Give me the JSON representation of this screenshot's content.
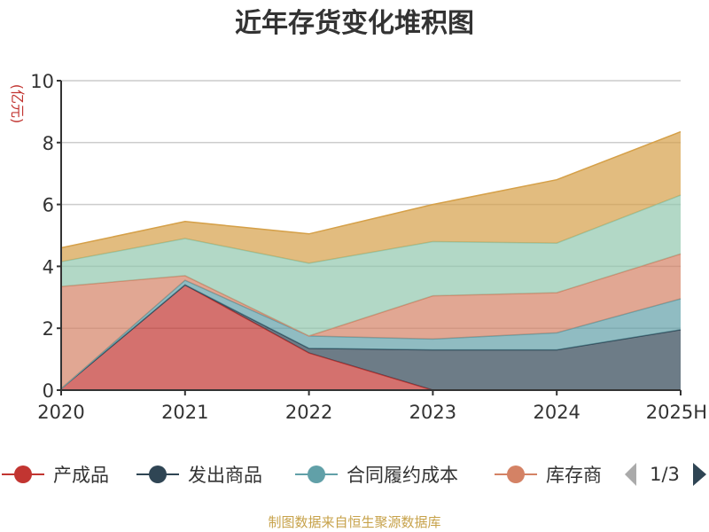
{
  "chart_data": {
    "type": "area",
    "stacked": true,
    "title": "近年存货变化堆积图",
    "ylabel": "(亿元)",
    "xlabel": "",
    "categories": [
      "2020",
      "2021",
      "2022",
      "2023",
      "2024",
      "2025H"
    ],
    "ylim": [
      0,
      10
    ],
    "yticks": [
      0,
      2,
      4,
      6,
      8,
      10
    ],
    "grid": true,
    "series": [
      {
        "name": "产成品",
        "color": "#c23531",
        "values": [
          0.05,
          3.4,
          1.2,
          0.0,
          0.0,
          0.0
        ]
      },
      {
        "name": "发出商品",
        "color": "#2f4554",
        "values": [
          0.0,
          0.0,
          0.15,
          1.3,
          1.3,
          1.95
        ]
      },
      {
        "name": "合同履约成本",
        "color": "#61a0a8",
        "values": [
          0.0,
          0.15,
          0.4,
          0.35,
          0.55,
          1.0
        ]
      },
      {
        "name": "库存商品",
        "color": "#d48265",
        "values": [
          3.3,
          0.15,
          0.0,
          1.4,
          1.3,
          1.45
        ]
      },
      {
        "name": "",
        "color": "#91c7ae",
        "values": [
          0.8,
          1.2,
          2.35,
          1.75,
          1.6,
          1.9
        ]
      },
      {
        "name": "",
        "color": "#d5a048",
        "values": [
          0.45,
          0.55,
          0.95,
          1.2,
          2.05,
          2.05
        ]
      }
    ]
  },
  "legend": {
    "items": [
      {
        "name": "产成品",
        "color": "#c23531"
      },
      {
        "name": "发出商品",
        "color": "#2f4554"
      },
      {
        "name": "合同履约成本",
        "color": "#61a0a8"
      },
      {
        "name": "库存商",
        "color": "#d48265"
      }
    ],
    "page": "1/3"
  },
  "source": "制图数据来自恒生聚源数据库"
}
